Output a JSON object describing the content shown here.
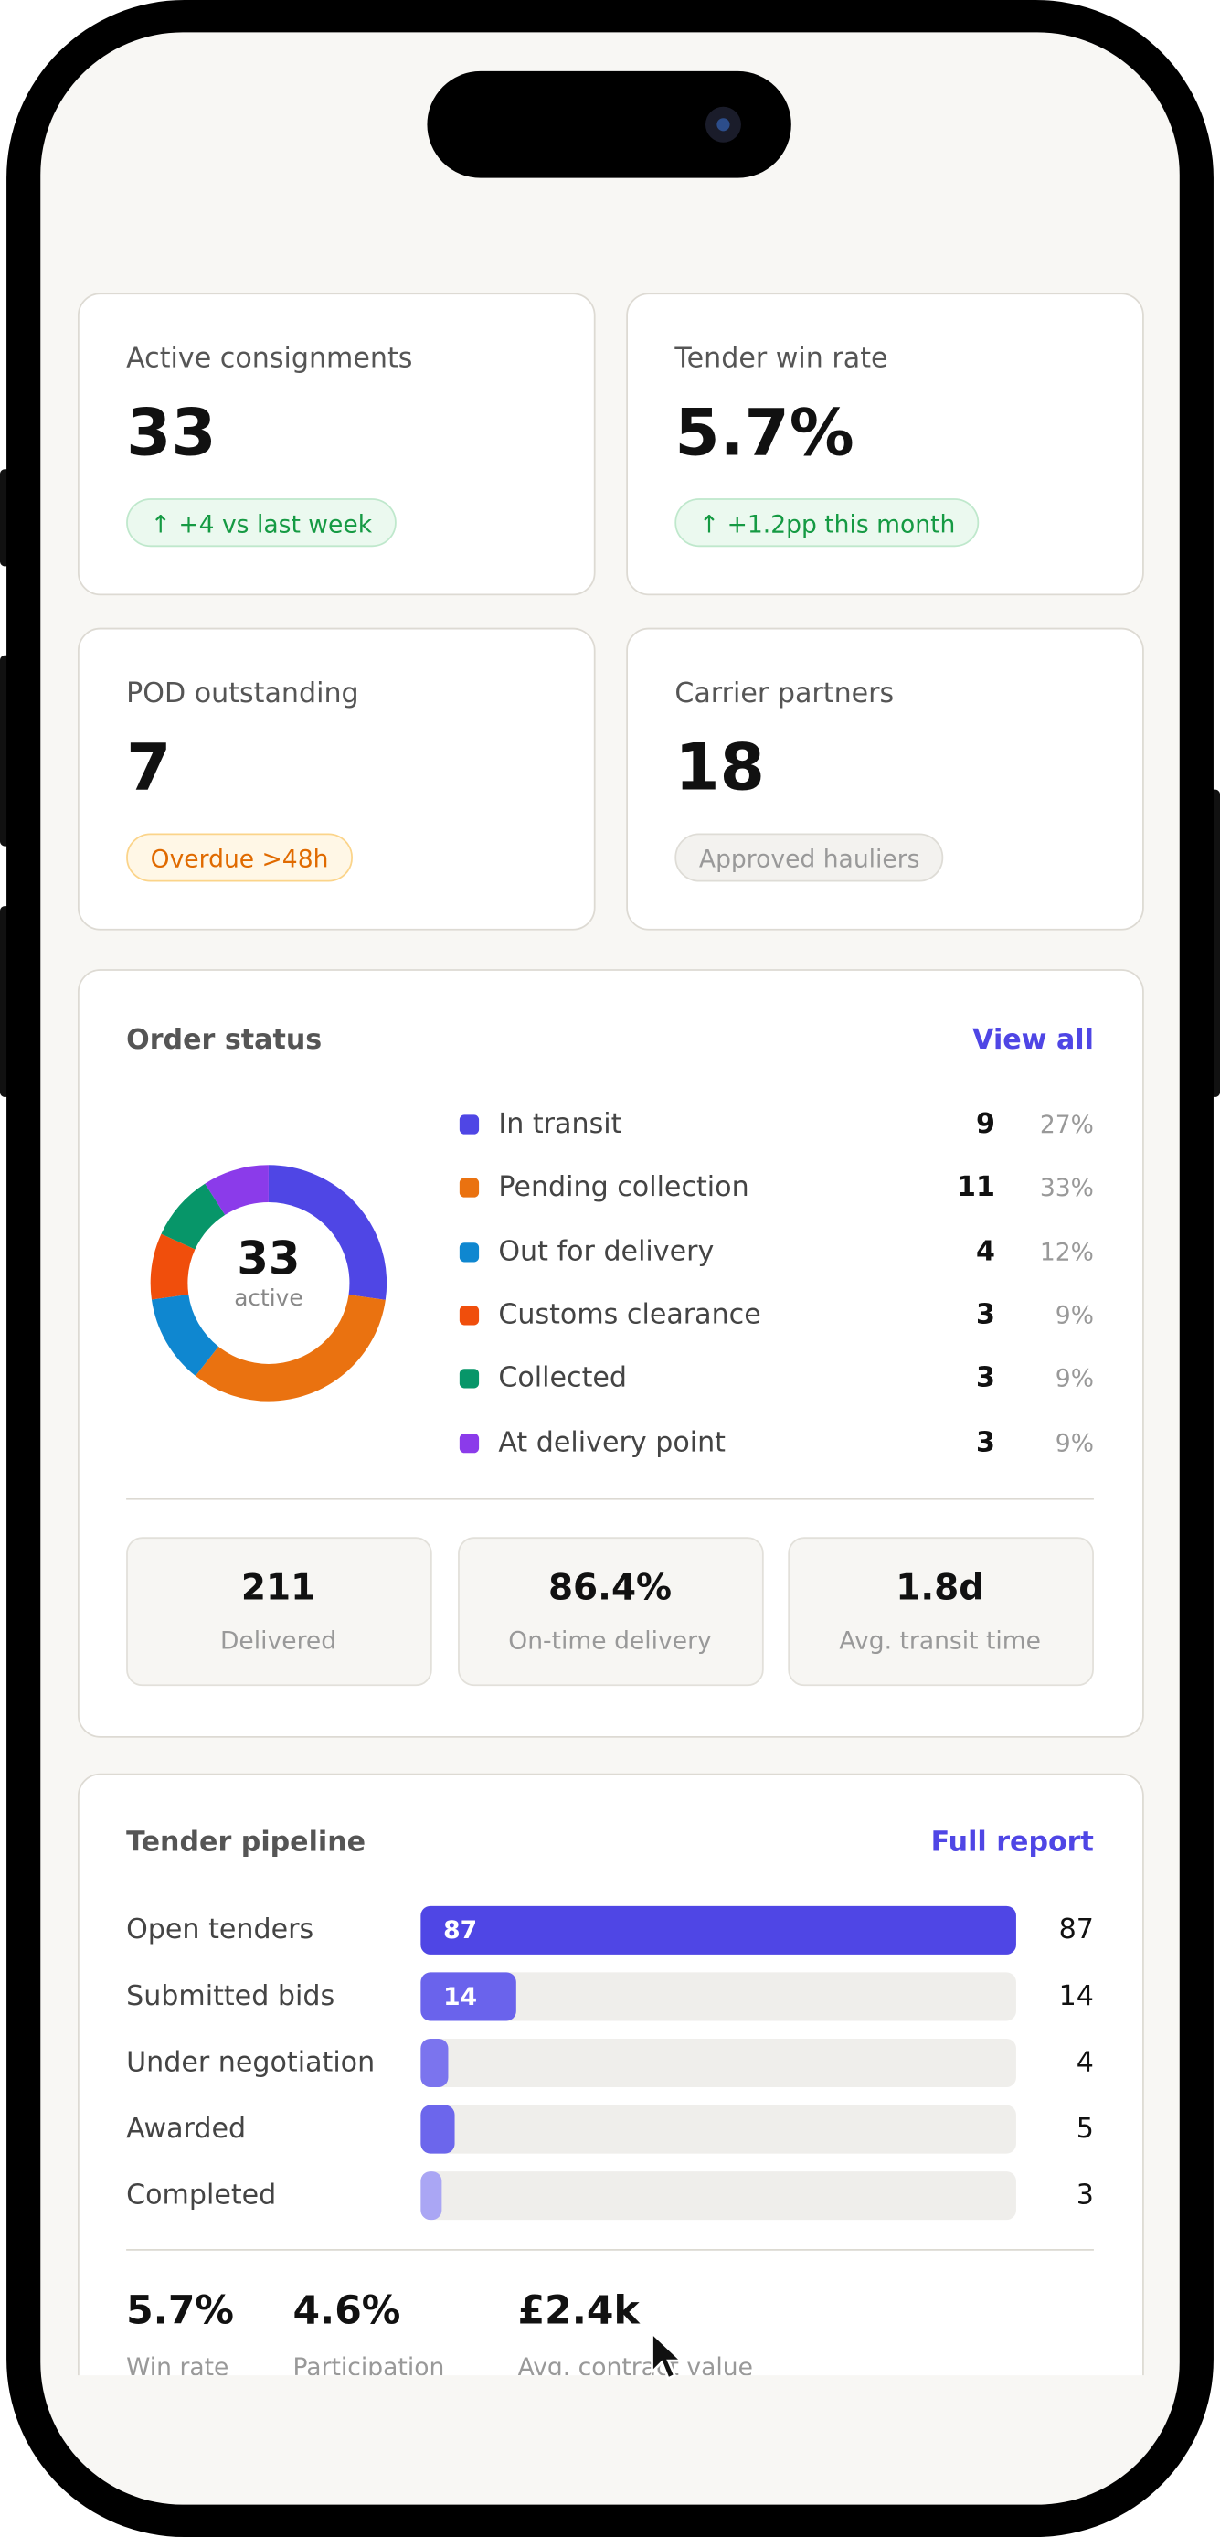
{
  "kpis": [
    {
      "label": "Active consignments",
      "value": "33",
      "badge": "↑ +4 vs last week",
      "tone": "up"
    },
    {
      "label": "Tender win rate",
      "value": "5.7%",
      "badge": "↑ +1.2pp this month",
      "tone": "up"
    },
    {
      "label": "POD outstanding",
      "value": "7",
      "badge": "Overdue >48h",
      "tone": "warn"
    },
    {
      "label": "Carrier partners",
      "value": "18",
      "badge": "Approved hauliers",
      "tone": "neutral"
    }
  ],
  "order_status": {
    "title": "Order status",
    "link": "View all",
    "total": 33,
    "total_label": "active",
    "segments": [
      {
        "name": "In transit",
        "value": 9,
        "pct": "27%",
        "color": "#4f46e5"
      },
      {
        "name": "Pending collection",
        "value": 11,
        "pct": "33%",
        "color": "#ea7210"
      },
      {
        "name": "Out for delivery",
        "value": 4,
        "pct": "12%",
        "color": "#0f87d0"
      },
      {
        "name": "Customs clearance",
        "value": 3,
        "pct": "9%",
        "color": "#f04e0c"
      },
      {
        "name": "Collected",
        "value": 3,
        "pct": "9%",
        "color": "#079669"
      },
      {
        "name": "At delivery point",
        "value": 3,
        "pct": "9%",
        "color": "#8b3bea"
      }
    ],
    "summary": [
      {
        "value": "211",
        "label": "Delivered"
      },
      {
        "value": "86.4%",
        "label": "On-time delivery"
      },
      {
        "value": "1.8d",
        "label": "Avg. transit time"
      }
    ]
  },
  "tender_pipeline": {
    "title": "Tender pipeline",
    "link": "Full report",
    "stages": [
      {
        "name": "Open tenders",
        "value": 87,
        "color": "#4f46e5"
      },
      {
        "name": "Submitted bids",
        "value": 14,
        "color": "#6a63ec"
      },
      {
        "name": "Under negotiation",
        "value": 4,
        "color": "#7b74ee"
      },
      {
        "name": "Awarded",
        "value": 5,
        "color": "#6c66ec"
      },
      {
        "name": "Completed",
        "value": 3,
        "color": "#aaa6f4"
      }
    ],
    "stats": [
      {
        "value": "5.7%",
        "label": "Win rate"
      },
      {
        "value": "4.6%",
        "label": "Participation"
      },
      {
        "value": "£2.4k",
        "label": "Avg. contract value"
      }
    ]
  }
}
